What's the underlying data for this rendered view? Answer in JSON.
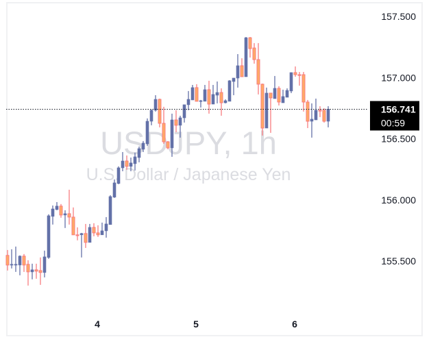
{
  "chart_data": {
    "type": "candlestick",
    "title": "USDJPY, 1h",
    "subtitle": "U.S. Dollar / Japanese Yen",
    "ylim": [
      155.2,
      157.6
    ],
    "y_ticks": [
      "157.500",
      "157.000",
      "156.500",
      "156.000",
      "155.500"
    ],
    "x_ticks": [
      {
        "label": "4",
        "index": 22
      },
      {
        "label": "5",
        "index": 46
      },
      {
        "label": "6",
        "index": 70
      }
    ],
    "last_price": 156.741,
    "last_price_label": "156.741",
    "countdown": "00:59",
    "colors": {
      "up": "#6371a8",
      "down_fill": "#ffab66",
      "down_border": "#f77c80",
      "label_bg": "#000000"
    },
    "ohlc": [
      [
        155.546,
        155.59,
        155.422,
        155.467
      ],
      [
        155.467,
        155.596,
        155.439,
        155.473
      ],
      [
        155.467,
        155.618,
        155.411,
        155.473
      ],
      [
        155.467,
        155.546,
        155.383,
        155.54
      ],
      [
        155.54,
        155.557,
        155.411,
        155.467
      ],
      [
        155.473,
        155.506,
        155.299,
        155.411
      ],
      [
        155.411,
        155.478,
        155.35,
        155.428
      ],
      [
        155.428,
        155.478,
        155.355,
        155.417
      ],
      [
        155.422,
        155.529,
        155.305,
        155.406
      ],
      [
        155.406,
        155.585,
        155.366,
        155.534
      ],
      [
        155.529,
        155.882,
        155.518,
        155.87
      ],
      [
        155.865,
        155.954,
        155.798,
        155.926
      ],
      [
        155.921,
        155.982,
        155.915,
        155.949
      ],
      [
        155.949,
        155.966,
        155.854,
        155.876
      ],
      [
        155.876,
        155.915,
        155.77,
        155.887
      ],
      [
        155.887,
        156.083,
        155.798,
        155.859
      ],
      [
        155.859,
        155.938,
        155.714,
        155.714
      ],
      [
        155.714,
        155.775,
        155.669,
        155.708
      ],
      [
        155.714,
        155.73,
        155.529,
        155.725
      ],
      [
        155.725,
        155.803,
        155.607,
        155.652
      ],
      [
        155.652,
        155.803,
        155.652,
        155.775
      ],
      [
        155.775,
        155.809,
        155.702,
        155.73
      ],
      [
        155.73,
        155.792,
        155.697,
        155.714
      ],
      [
        155.714,
        155.814,
        155.714,
        155.747
      ],
      [
        155.747,
        155.859,
        155.691,
        155.803
      ],
      [
        155.798,
        156.038,
        155.798,
        156.027
      ],
      [
        156.022,
        156.167,
        156.016,
        156.139
      ],
      [
        156.134,
        156.274,
        156.128,
        156.262
      ],
      [
        156.262,
        156.391,
        156.234,
        156.318
      ],
      [
        156.318,
        156.363,
        156.246,
        156.274
      ],
      [
        156.274,
        156.346,
        156.234,
        156.302
      ],
      [
        156.296,
        156.386,
        156.24,
        156.352
      ],
      [
        156.346,
        156.436,
        156.307,
        156.419
      ],
      [
        156.414,
        156.481,
        156.391,
        156.464
      ],
      [
        156.458,
        156.666,
        156.442,
        156.643
      ],
      [
        156.643,
        156.738,
        156.61,
        156.733
      ],
      [
        156.733,
        156.856,
        156.722,
        156.822
      ],
      [
        156.822,
        156.828,
        156.593,
        156.626
      ],
      [
        156.626,
        156.761,
        156.458,
        156.475
      ],
      [
        156.475,
        156.481,
        156.414,
        156.425
      ],
      [
        156.425,
        156.705,
        156.352,
        156.654
      ],
      [
        156.654,
        156.733,
        156.554,
        156.61
      ],
      [
        156.61,
        156.688,
        156.509,
        156.671
      ],
      [
        156.671,
        156.778,
        156.632,
        156.778
      ],
      [
        156.778,
        156.89,
        156.733,
        156.822
      ],
      [
        156.817,
        156.94,
        156.817,
        156.918
      ],
      [
        156.918,
        156.946,
        156.806,
        156.806
      ],
      [
        156.806,
        156.817,
        156.755,
        156.811
      ],
      [
        156.806,
        156.94,
        156.806,
        156.901
      ],
      [
        156.901,
        156.974,
        156.705,
        156.783
      ],
      [
        156.783,
        156.94,
        156.783,
        156.862
      ],
      [
        156.856,
        156.968,
        156.789,
        156.878
      ],
      [
        156.878,
        156.912,
        156.688,
        156.794
      ],
      [
        156.794,
        156.822,
        156.789,
        156.811
      ],
      [
        156.806,
        156.979,
        156.806,
        156.974
      ],
      [
        156.968,
        156.996,
        156.856,
        156.996
      ],
      [
        156.996,
        157.192,
        156.918,
        157.097
      ],
      [
        157.097,
        157.158,
        157.007,
        157.007
      ],
      [
        157.007,
        157.332,
        157.007,
        157.326
      ],
      [
        157.326,
        157.332,
        157.164,
        157.237
      ],
      [
        157.242,
        157.282,
        157.114,
        157.147
      ],
      [
        157.147,
        157.282,
        156.862,
        156.946
      ],
      [
        156.946,
        156.951,
        156.526,
        156.587
      ],
      [
        156.587,
        156.918,
        156.587,
        156.873
      ],
      [
        156.873,
        156.873,
        156.548,
        156.834
      ],
      [
        156.828,
        157.013,
        156.828,
        156.912
      ],
      [
        156.912,
        156.929,
        156.772,
        156.8
      ],
      [
        156.794,
        156.901,
        156.794,
        156.845
      ],
      [
        156.839,
        156.912,
        156.839,
        156.895
      ],
      [
        156.89,
        157.041,
        156.873,
        157.041
      ],
      [
        157.041,
        157.091,
        157.007,
        157.024
      ],
      [
        157.024,
        157.046,
        156.934,
        157.02
      ],
      [
        157.024,
        157.046,
        156.722,
        156.8
      ],
      [
        156.8,
        156.817,
        156.587,
        156.643
      ],
      [
        156.643,
        156.789,
        156.509,
        156.66
      ],
      [
        156.654,
        156.828,
        156.654,
        156.733
      ],
      [
        156.733,
        156.766,
        156.677,
        156.73
      ],
      [
        156.733,
        156.749,
        156.632,
        156.643
      ],
      [
        156.643,
        156.766,
        156.593,
        156.741
      ]
    ]
  }
}
